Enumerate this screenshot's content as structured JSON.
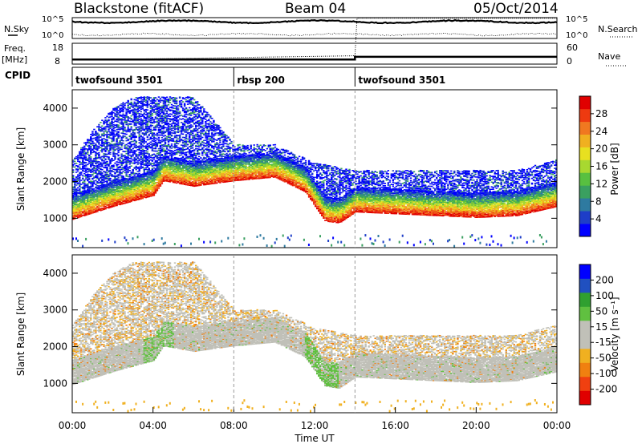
{
  "header": {
    "station": "Blackstone (fitACF)",
    "beam": "Beam 04",
    "date": "05/Oct/2014"
  },
  "chart_data": [
    {
      "type": "line",
      "panel": "noise",
      "left_label": "N.Sky",
      "right_label": "N.Search",
      "left_ticks": [
        "10^5",
        "10^0"
      ],
      "right_ticks": [
        "10^5",
        "10^0"
      ],
      "series": [
        {
          "name": "N.Sky",
          "style": "solid"
        },
        {
          "name": "N.Search",
          "style": "dotted"
        }
      ]
    },
    {
      "type": "line",
      "panel": "frequency",
      "left_label_top": "Freq.",
      "left_label_bottom": "[MHz]",
      "right_label": "Nave",
      "left_ticks": [
        "18",
        "8"
      ],
      "right_ticks": [
        "60",
        "0"
      ],
      "ylim_freq": [
        8,
        18
      ],
      "ylim_nave": [
        0,
        60
      ],
      "series": [
        {
          "name": "Freq.",
          "style": "solid",
          "x": [
            0,
            8,
            8,
            14,
            14,
            24
          ],
          "y": [
            10.2,
            10.2,
            10.2,
            10.2,
            11.5,
            11.5
          ]
        },
        {
          "name": "Nave",
          "style": "dotted",
          "x": [
            0,
            14,
            14.1,
            24
          ],
          "y": [
            10,
            12,
            30,
            30
          ]
        }
      ]
    },
    {
      "type": "table",
      "panel": "cpid",
      "label": "CPID",
      "segments": [
        {
          "name": "twofsound 3501",
          "start": 0,
          "end": 8
        },
        {
          "name": "rbsp 200",
          "start": 8,
          "end": 14
        },
        {
          "name": "twofsound 3501",
          "start": 14,
          "end": 24
        }
      ]
    },
    {
      "type": "heatmap",
      "panel": "power",
      "ylabel": "Slant Range [km]",
      "xlim": [
        0,
        24
      ],
      "ylim": [
        200,
        4500
      ],
      "y_ticks": [
        "1000",
        "2000",
        "3000",
        "4000"
      ],
      "colorbar_label": "Power [dB]",
      "colorbar_ticks": [
        "4",
        "8",
        "12",
        "16",
        "20",
        "24",
        "28"
      ],
      "colorbar_range": [
        0,
        32
      ],
      "colors": [
        "#0000ff",
        "#1e3ec8",
        "#2e7aa0",
        "#3aa060",
        "#58c040",
        "#a8d830",
        "#e8e020",
        "#f0b020",
        "#f07820",
        "#ee3a10",
        "#e00000"
      ],
      "echo_bands": [
        {
          "name": "main_band",
          "points": [
            [
              0,
              1050
            ],
            [
              2,
              1400
            ],
            [
              4,
              1700
            ],
            [
              4.5,
              2100
            ],
            [
              6,
              1950
            ],
            [
              8,
              2100
            ],
            [
              10,
              2200
            ],
            [
              11.5,
              1800
            ],
            [
              12.5,
              1000
            ],
            [
              13.2,
              950
            ],
            [
              14,
              1250
            ],
            [
              18,
              1150
            ],
            [
              20,
              1100
            ],
            [
              22,
              1150
            ],
            [
              24,
              1400
            ]
          ]
        },
        {
          "name": "upper_scatter",
          "points": [
            [
              0,
              2600
            ],
            [
              1,
              3400
            ],
            [
              2,
              4000
            ],
            [
              3,
              4300
            ],
            [
              6,
              4300
            ],
            [
              8,
              3000
            ],
            [
              10,
              3000
            ],
            [
              12,
              2500
            ],
            [
              14,
              2300
            ],
            [
              18,
              2300
            ],
            [
              22,
              2300
            ],
            [
              24,
              2600
            ]
          ]
        }
      ]
    },
    {
      "type": "heatmap",
      "panel": "velocity",
      "ylabel": "Slant Range [km]",
      "xlabel": "Time UT",
      "xlim": [
        0,
        24
      ],
      "ylim": [
        200,
        4500
      ],
      "x_ticks": [
        "00:00",
        "04:00",
        "08:00",
        "12:00",
        "16:00",
        "20:00",
        "00:00"
      ],
      "y_ticks": [
        "1000",
        "2000",
        "3000",
        "4000"
      ],
      "colorbar_label": "Velocity [m s⁻¹]",
      "colorbar_ticks": [
        "200",
        "100",
        "50",
        "15",
        "-15",
        "-50",
        "-100",
        "-200"
      ],
      "colors": [
        "#e00000",
        "#f04010",
        "#f08010",
        "#f0b020",
        "#c0c0b8",
        "#c0c0b8",
        "#60c040",
        "#30a030",
        "#2050c0",
        "#0000ff"
      ]
    }
  ],
  "axes": {
    "time_label": "Time UT"
  }
}
